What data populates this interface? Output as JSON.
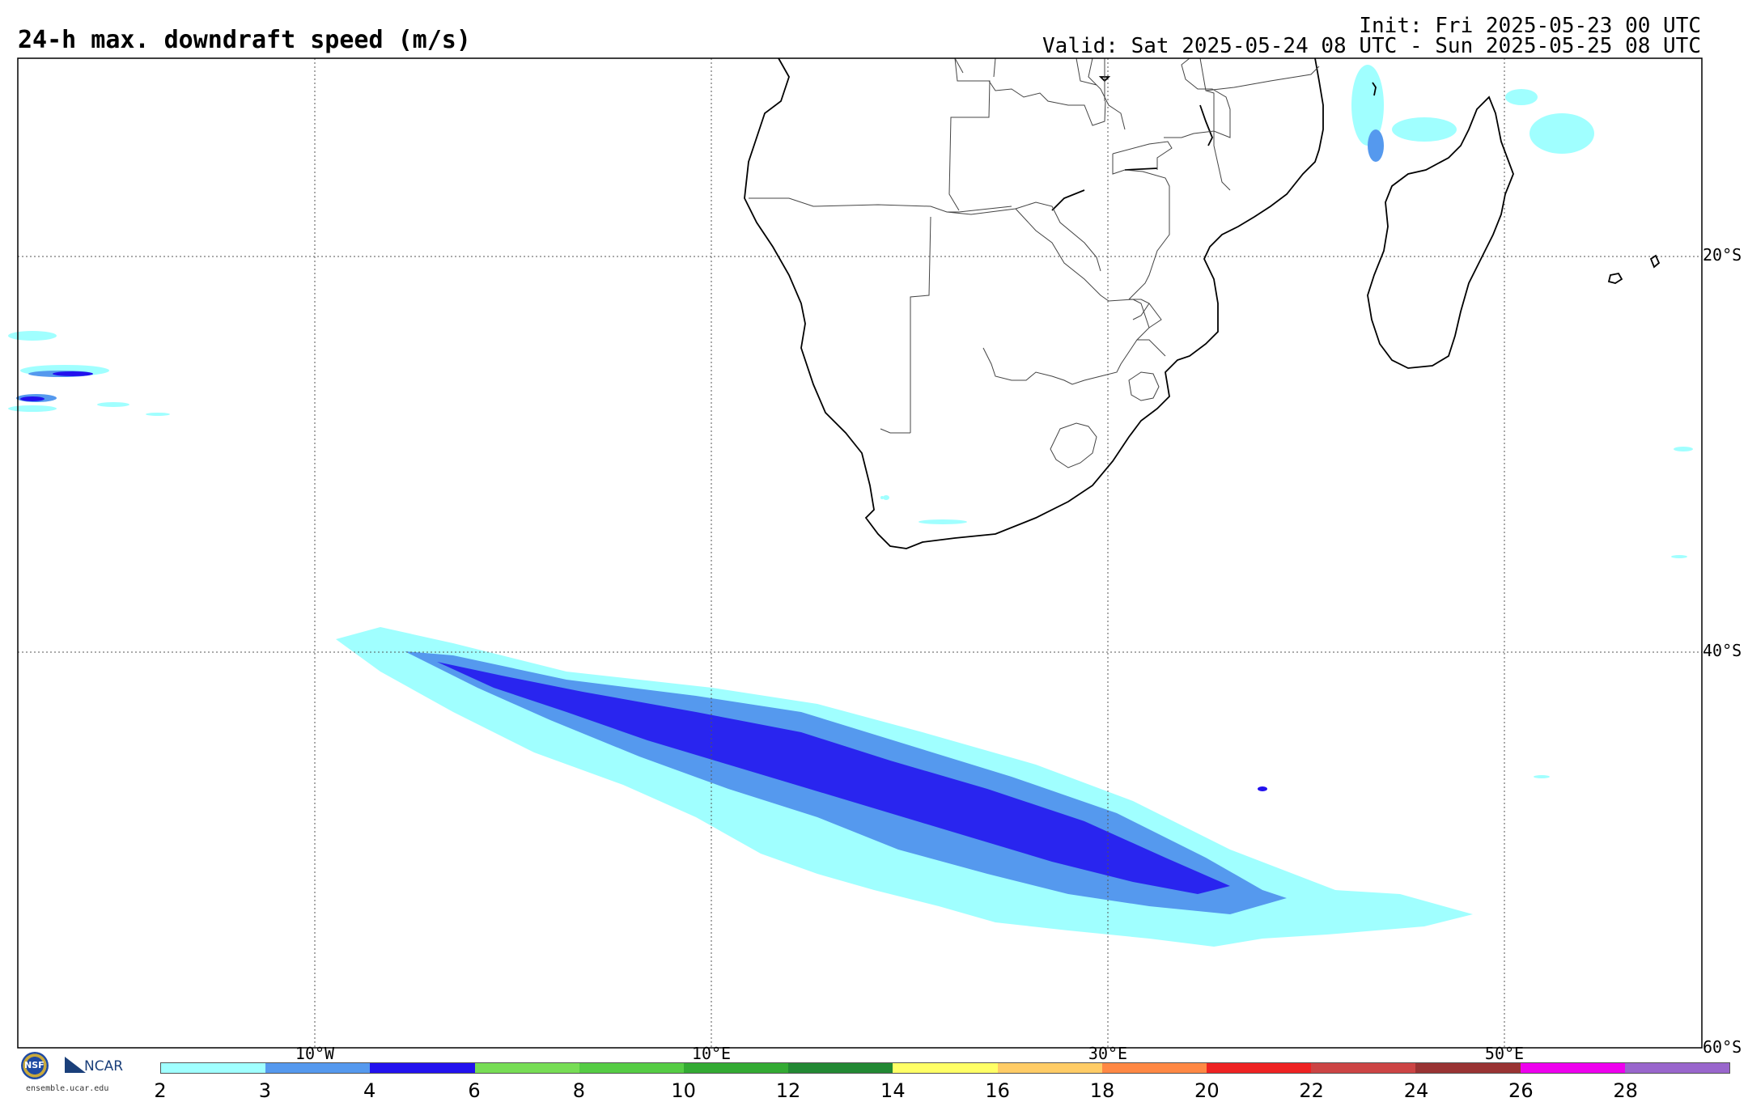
{
  "title": "24-h max. downdraft speed (m/s)",
  "init": "Init: Fri 2025-05-23 00 UTC",
  "valid": "Valid: Sat 2025-05-24 08 UTC - Sun 2025-05-25 08 UTC",
  "lat_labels": [
    "20°S",
    "40°S",
    "60°S"
  ],
  "lon_labels": [
    "10°W",
    "10°E",
    "30°E",
    "50°E"
  ],
  "colorbar": {
    "colors": [
      "#a0ffff",
      "#5599ee",
      "#2211ee",
      "#77dd55",
      "#55cc44",
      "#33aa33",
      "#228833",
      "#ffff66",
      "#ffcc66",
      "#ff8844",
      "#ee2222",
      "#cc4444",
      "#993333",
      "#ee00ee",
      "#9966cc"
    ],
    "ticks": [
      "2",
      "3",
      "4",
      "6",
      "8",
      "10",
      "12",
      "14",
      "16",
      "18",
      "20",
      "22",
      "24",
      "26",
      "28"
    ]
  },
  "logos": {
    "nsf": "NSF",
    "ncar": "NCAR",
    "site": "ensemble.ucar.edu"
  }
}
